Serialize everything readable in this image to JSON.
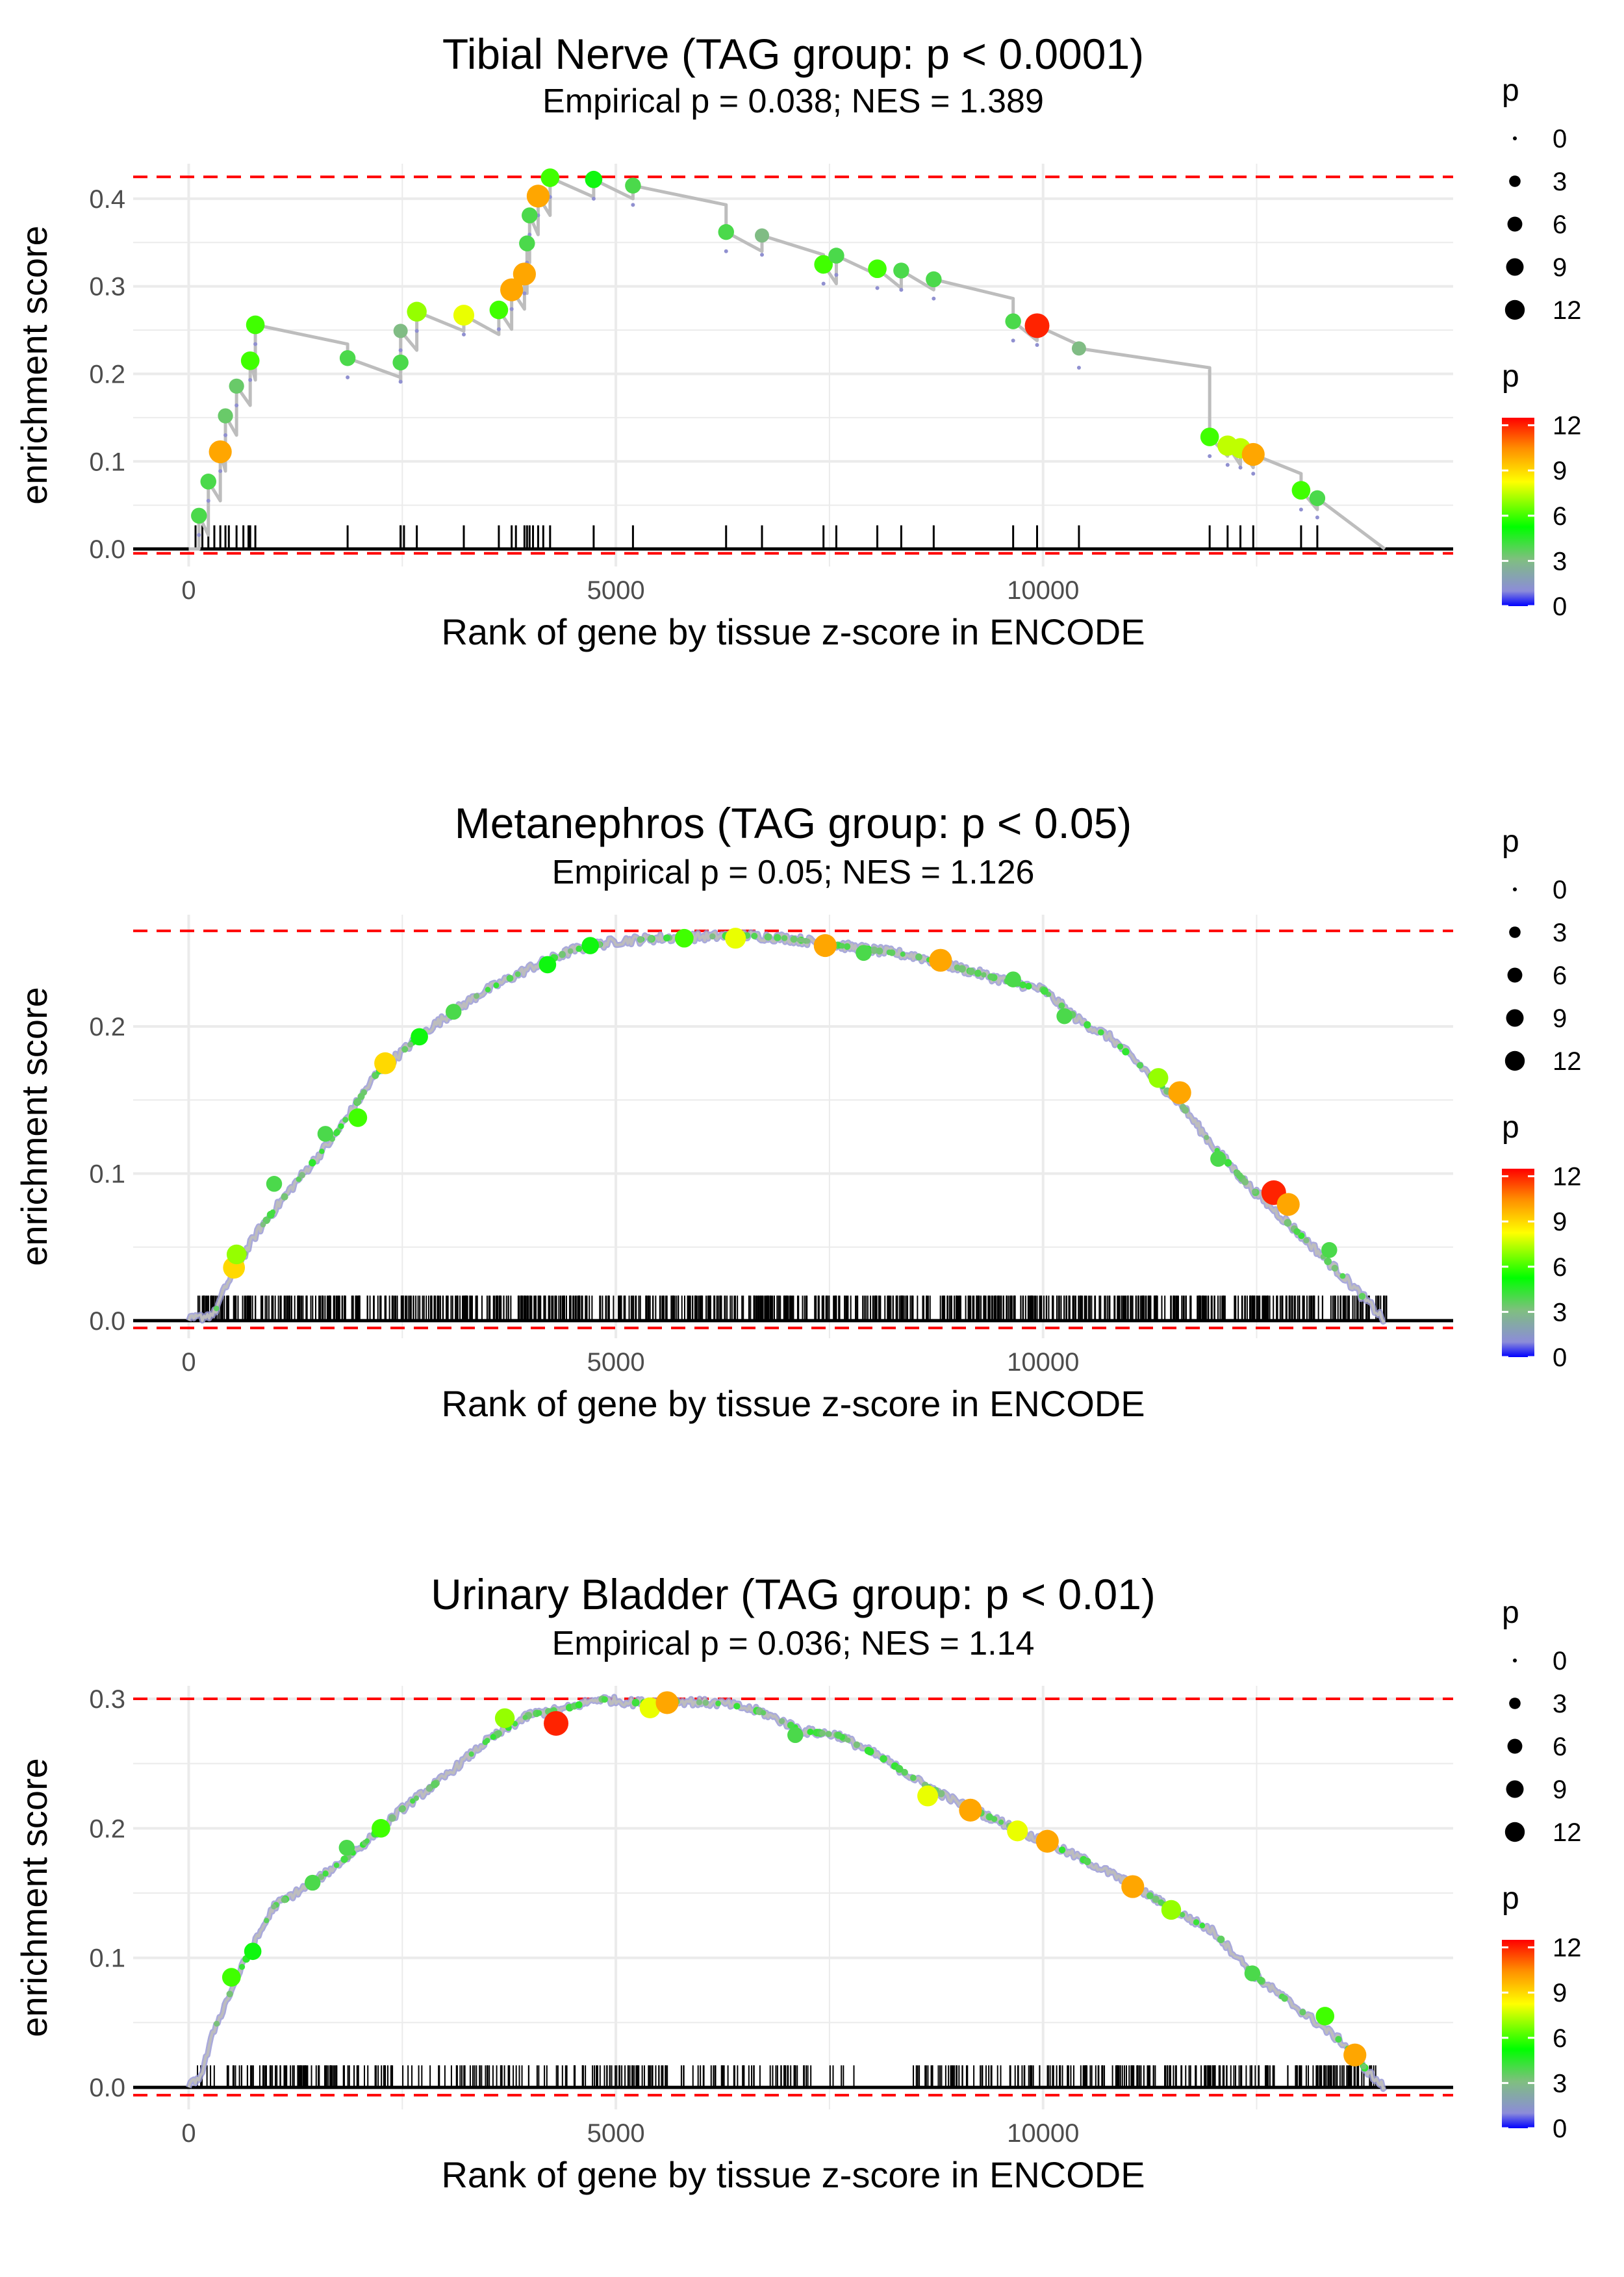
{
  "panels_title": "GSEA enrichment plots",
  "colors": {
    "grid": "#ebebeb",
    "curve": "#bdbdbd",
    "dashed": "#ff0000",
    "axis": "#000000",
    "hit": "#000000",
    "text": "#000000",
    "tick_text": "#4d4d4d",
    "gradient": [
      "#0000ff",
      "#8c8cd9",
      "#7fbf7f",
      "#00ff00",
      "#ffff00",
      "#ff8c00",
      "#ff0000"
    ]
  },
  "chart_data": [
    {
      "type": "line",
      "title": "Tibial Nerve (TAG group: p < 0.0001)",
      "subtitle": "Empirical p = 0.038; NES = 1.389",
      "xlabel": "Rank of gene by tissue z-score in ENCODE",
      "ylabel": "enrichment score",
      "xlim": [
        -650,
        14800
      ],
      "ylim": [
        -0.02,
        0.44
      ],
      "xticks": [
        0,
        5000,
        10000
      ],
      "xtick_labels": [
        "0",
        "5000",
        "10000"
      ],
      "yticks": [
        0.0,
        0.1,
        0.2,
        0.3,
        0.4
      ],
      "ytick_labels": [
        "0.0",
        "0.1",
        "0.2",
        "0.3",
        "0.4"
      ],
      "dashed_lines": [
        0.425,
        -0.005
      ],
      "legend_size": {
        "title": "p",
        "values": [
          0,
          3,
          6,
          9,
          12
        ],
        "labels": [
          "0",
          "3",
          "6",
          "9",
          "12"
        ]
      },
      "legend_color": {
        "title": "p",
        "values": [
          0,
          3,
          6,
          9,
          12
        ],
        "labels": [
          "0",
          "3",
          "6",
          "9",
          "12"
        ]
      },
      "mode": "sparse",
      "end_rank": 14000,
      "points": [
        {
          "x": 120,
          "y": 0.038,
          "p": 4
        },
        {
          "x": 230,
          "y": 0.077,
          "p": 4
        },
        {
          "x": 370,
          "y": 0.111,
          "p": 10
        },
        {
          "x": 430,
          "y": 0.152,
          "p": 3.5
        },
        {
          "x": 560,
          "y": 0.186,
          "p": 3.5
        },
        {
          "x": 720,
          "y": 0.215,
          "p": 6
        },
        {
          "x": 780,
          "y": 0.256,
          "p": 6
        },
        {
          "x": 1860,
          "y": 0.218,
          "p": 4
        },
        {
          "x": 2480,
          "y": 0.213,
          "p": 4
        },
        {
          "x": 2480,
          "y": 0.249,
          "p": 3
        },
        {
          "x": 2670,
          "y": 0.271,
          "p": 7
        },
        {
          "x": 3220,
          "y": 0.267,
          "p": 8
        },
        {
          "x": 3630,
          "y": 0.273,
          "p": 6
        },
        {
          "x": 3780,
          "y": 0.296,
          "p": 10
        },
        {
          "x": 3930,
          "y": 0.314,
          "p": 10
        },
        {
          "x": 3960,
          "y": 0.349,
          "p": 4
        },
        {
          "x": 3990,
          "y": 0.381,
          "p": 4
        },
        {
          "x": 4090,
          "y": 0.403,
          "p": 10
        },
        {
          "x": 4230,
          "y": 0.424,
          "p": 6
        },
        {
          "x": 4740,
          "y": 0.422,
          "p": 5
        },
        {
          "x": 5200,
          "y": 0.415,
          "p": 4
        },
        {
          "x": 6290,
          "y": 0.362,
          "p": 4
        },
        {
          "x": 6710,
          "y": 0.358,
          "p": 3
        },
        {
          "x": 7430,
          "y": 0.325,
          "p": 6
        },
        {
          "x": 7580,
          "y": 0.335,
          "p": 4
        },
        {
          "x": 8060,
          "y": 0.32,
          "p": 6
        },
        {
          "x": 8340,
          "y": 0.318,
          "p": 4
        },
        {
          "x": 8720,
          "y": 0.308,
          "p": 4
        },
        {
          "x": 9650,
          "y": 0.26,
          "p": 4
        },
        {
          "x": 9930,
          "y": 0.255,
          "p": 12
        },
        {
          "x": 10420,
          "y": 0.229,
          "p": 3
        },
        {
          "x": 11950,
          "y": 0.128,
          "p": 6
        },
        {
          "x": 12160,
          "y": 0.118,
          "p": 7.5
        },
        {
          "x": 12310,
          "y": 0.115,
          "p": 7.5
        },
        {
          "x": 12460,
          "y": 0.108,
          "p": 10
        },
        {
          "x": 13020,
          "y": 0.067,
          "p": 6
        },
        {
          "x": 13210,
          "y": 0.058,
          "p": 4
        }
      ]
    },
    {
      "type": "line",
      "title": "Metanephros (TAG group: p < 0.05)",
      "subtitle": "Empirical p = 0.05; NES = 1.126",
      "xlabel": "Rank of gene by tissue z-score in ENCODE",
      "ylabel": "enrichment score",
      "xlim": [
        -650,
        14800
      ],
      "ylim": [
        -0.012,
        0.276
      ],
      "xticks": [
        0,
        5000,
        10000
      ],
      "xtick_labels": [
        "0",
        "5000",
        "10000"
      ],
      "yticks": [
        0.0,
        0.1,
        0.2
      ],
      "ytick_labels": [
        "0.0",
        "0.1",
        "0.2"
      ],
      "dashed_lines": [
        0.265,
        -0.005
      ],
      "legend_size": {
        "title": "p",
        "values": [
          0,
          3,
          6,
          9,
          12
        ],
        "labels": [
          "0",
          "3",
          "6",
          "9",
          "12"
        ]
      },
      "legend_color": {
        "title": "p",
        "values": [
          0,
          3,
          6,
          9,
          12
        ],
        "labels": [
          "0",
          "3",
          "6",
          "9",
          "12"
        ]
      },
      "mode": "dense",
      "hit_range": [
        100,
        14050
      ],
      "hit_count": 900,
      "hit_top": 0.017,
      "curve": [
        [
          0,
          0.0
        ],
        [
          300,
          0.005
        ],
        [
          450,
          0.025
        ],
        [
          800,
          0.06
        ],
        [
          1200,
          0.09
        ],
        [
          1700,
          0.125
        ],
        [
          2200,
          0.168
        ],
        [
          2800,
          0.198
        ],
        [
          3400,
          0.222
        ],
        [
          4000,
          0.24
        ],
        [
          4500,
          0.252
        ],
        [
          5000,
          0.258
        ],
        [
          5500,
          0.26
        ],
        [
          6000,
          0.261
        ],
        [
          6500,
          0.262
        ],
        [
          7000,
          0.26
        ],
        [
          7500,
          0.256
        ],
        [
          8000,
          0.252
        ],
        [
          8500,
          0.248
        ],
        [
          9000,
          0.24
        ],
        [
          9500,
          0.232
        ],
        [
          10000,
          0.225
        ],
        [
          10400,
          0.205
        ],
        [
          10800,
          0.192
        ],
        [
          11200,
          0.17
        ],
        [
          11600,
          0.148
        ],
        [
          12000,
          0.118
        ],
        [
          12400,
          0.092
        ],
        [
          12800,
          0.07
        ],
        [
          13200,
          0.048
        ],
        [
          13600,
          0.025
        ],
        [
          14000,
          0.0
        ]
      ],
      "points": [
        {
          "x": 530,
          "y": 0.036,
          "p": 9
        },
        {
          "x": 560,
          "y": 0.045,
          "p": 7
        },
        {
          "x": 1000,
          "y": 0.093,
          "p": 4
        },
        {
          "x": 1600,
          "y": 0.127,
          "p": 4
        },
        {
          "x": 1980,
          "y": 0.138,
          "p": 6
        },
        {
          "x": 2300,
          "y": 0.175,
          "p": 9
        },
        {
          "x": 2700,
          "y": 0.193,
          "p": 5
        },
        {
          "x": 3100,
          "y": 0.21,
          "p": 4
        },
        {
          "x": 4200,
          "y": 0.242,
          "p": 5
        },
        {
          "x": 4700,
          "y": 0.255,
          "p": 5
        },
        {
          "x": 5800,
          "y": 0.26,
          "p": 6
        },
        {
          "x": 6400,
          "y": 0.26,
          "p": 8
        },
        {
          "x": 7450,
          "y": 0.255,
          "p": 10
        },
        {
          "x": 7900,
          "y": 0.25,
          "p": 4
        },
        {
          "x": 8800,
          "y": 0.245,
          "p": 10
        },
        {
          "x": 9650,
          "y": 0.232,
          "p": 4
        },
        {
          "x": 10250,
          "y": 0.207,
          "p": 4
        },
        {
          "x": 11350,
          "y": 0.165,
          "p": 7
        },
        {
          "x": 11600,
          "y": 0.155,
          "p": 10
        },
        {
          "x": 12050,
          "y": 0.11,
          "p": 4
        },
        {
          "x": 12700,
          "y": 0.087,
          "p": 12
        },
        {
          "x": 12870,
          "y": 0.079,
          "p": 10
        },
        {
          "x": 13350,
          "y": 0.048,
          "p": 4
        }
      ]
    },
    {
      "type": "line",
      "title": "Urinary Bladder (TAG group: p < 0.01)",
      "subtitle": "Empirical p = 0.036; NES = 1.14",
      "xlabel": "Rank of gene by tissue z-score in ENCODE",
      "ylabel": "enrichment score",
      "xlim": [
        -650,
        14800
      ],
      "ylim": [
        -0.017,
        0.31
      ],
      "xticks": [
        0,
        5000,
        10000
      ],
      "xtick_labels": [
        "0",
        "5000",
        "10000"
      ],
      "yticks": [
        0.0,
        0.1,
        0.2,
        0.3
      ],
      "ytick_labels": [
        "0.0",
        "0.1",
        "0.2",
        "0.3"
      ],
      "dashed_lines": [
        0.3,
        -0.006
      ],
      "legend_size": {
        "title": "p",
        "values": [
          0,
          3,
          6,
          9,
          12
        ],
        "labels": [
          "0",
          "3",
          "6",
          "9",
          "12"
        ]
      },
      "legend_color": {
        "title": "p",
        "values": [
          0,
          3,
          6,
          9,
          12
        ],
        "labels": [
          "0",
          "3",
          "6",
          "9",
          "12"
        ]
      },
      "mode": "dense",
      "hit_range": [
        100,
        13900
      ],
      "hit_count": 520,
      "hit_top": 0.017,
      "gap": [
        7300,
        8500
      ],
      "curve": [
        [
          0,
          0.0
        ],
        [
          150,
          0.01
        ],
        [
          300,
          0.045
        ],
        [
          600,
          0.09
        ],
        [
          1000,
          0.14
        ],
        [
          1500,
          0.16
        ],
        [
          2000,
          0.185
        ],
        [
          2500,
          0.215
        ],
        [
          3000,
          0.24
        ],
        [
          3500,
          0.268
        ],
        [
          4000,
          0.288
        ],
        [
          4400,
          0.292
        ],
        [
          4800,
          0.3
        ],
        [
          5200,
          0.297
        ],
        [
          5800,
          0.298
        ],
        [
          6300,
          0.296
        ],
        [
          6700,
          0.29
        ],
        [
          7200,
          0.275
        ],
        [
          7600,
          0.272
        ],
        [
          8100,
          0.255
        ],
        [
          8600,
          0.234
        ],
        [
          9000,
          0.22
        ],
        [
          9500,
          0.205
        ],
        [
          10000,
          0.19
        ],
        [
          10500,
          0.175
        ],
        [
          11000,
          0.158
        ],
        [
          11500,
          0.138
        ],
        [
          12000,
          0.12
        ],
        [
          12500,
          0.085
        ],
        [
          13000,
          0.06
        ],
        [
          13500,
          0.035
        ],
        [
          13900,
          0.005
        ],
        [
          14000,
          0.0
        ]
      ],
      "points": [
        {
          "x": 500,
          "y": 0.085,
          "p": 6
        },
        {
          "x": 750,
          "y": 0.105,
          "p": 5
        },
        {
          "x": 1450,
          "y": 0.158,
          "p": 4
        },
        {
          "x": 1850,
          "y": 0.185,
          "p": 4
        },
        {
          "x": 2250,
          "y": 0.2,
          "p": 6
        },
        {
          "x": 3700,
          "y": 0.285,
          "p": 7
        },
        {
          "x": 4300,
          "y": 0.281,
          "p": 12
        },
        {
          "x": 5400,
          "y": 0.293,
          "p": 8
        },
        {
          "x": 5600,
          "y": 0.297,
          "p": 10
        },
        {
          "x": 7100,
          "y": 0.272,
          "p": 4
        },
        {
          "x": 8650,
          "y": 0.225,
          "p": 8
        },
        {
          "x": 9150,
          "y": 0.214,
          "p": 10
        },
        {
          "x": 9700,
          "y": 0.198,
          "p": 8
        },
        {
          "x": 10050,
          "y": 0.19,
          "p": 10
        },
        {
          "x": 11050,
          "y": 0.155,
          "p": 10
        },
        {
          "x": 11500,
          "y": 0.137,
          "p": 7
        },
        {
          "x": 12450,
          "y": 0.088,
          "p": 4
        },
        {
          "x": 13300,
          "y": 0.055,
          "p": 6
        },
        {
          "x": 13650,
          "y": 0.025,
          "p": 10
        }
      ]
    }
  ]
}
